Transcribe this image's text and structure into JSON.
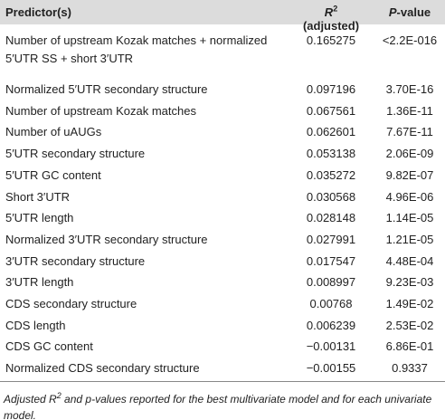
{
  "header": {
    "predictor": "Predictor(s)",
    "r2": {
      "symbol": "R",
      "sup": "2",
      "rest": " (adjusted)"
    },
    "pvalue": {
      "italic": "P",
      "rest": "-value"
    }
  },
  "table": {
    "rows": [
      [
        "Number of upstream Kozak matches + normalized 5′UTR SS + short 3′UTR",
        "0.165275",
        "<2.2E-016"
      ],
      [
        "Normalized 5′UTR secondary structure",
        "0.097196",
        "3.70E-16"
      ],
      [
        "Number of upstream Kozak matches",
        "0.067561",
        "1.36E-11"
      ],
      [
        "Number of uAUGs",
        "0.062601",
        "7.67E-11"
      ],
      [
        "5′UTR secondary structure",
        "0.053138",
        "2.06E-09"
      ],
      [
        "5′UTR GC content",
        "0.035272",
        "9.82E-07"
      ],
      [
        "Short 3′UTR",
        "0.030568",
        "4.96E-06"
      ],
      [
        "5′UTR length",
        "0.028148",
        "1.14E-05"
      ],
      [
        "Normalized 3′UTR secondary structure",
        "0.027991",
        "1.21E-05"
      ],
      [
        "3′UTR secondary structure",
        "0.017547",
        "4.48E-04"
      ],
      [
        "3′UTR length",
        "0.008997",
        "9.23E-03"
      ],
      [
        "CDS secondary structure",
        "0.00768",
        "1.49E-02"
      ],
      [
        "CDS length",
        "0.006239",
        "2.53E-02"
      ],
      [
        "CDS GC content",
        "−0.00131",
        "6.86E-01"
      ],
      [
        "Normalized CDS secondary structure",
        "−0.00155",
        "0.9337"
      ]
    ]
  },
  "footnote": {
    "a": "Adjusted R",
    "sup": "2",
    "b": " and p-values reported for the best multivariate model and for each univariate model."
  }
}
